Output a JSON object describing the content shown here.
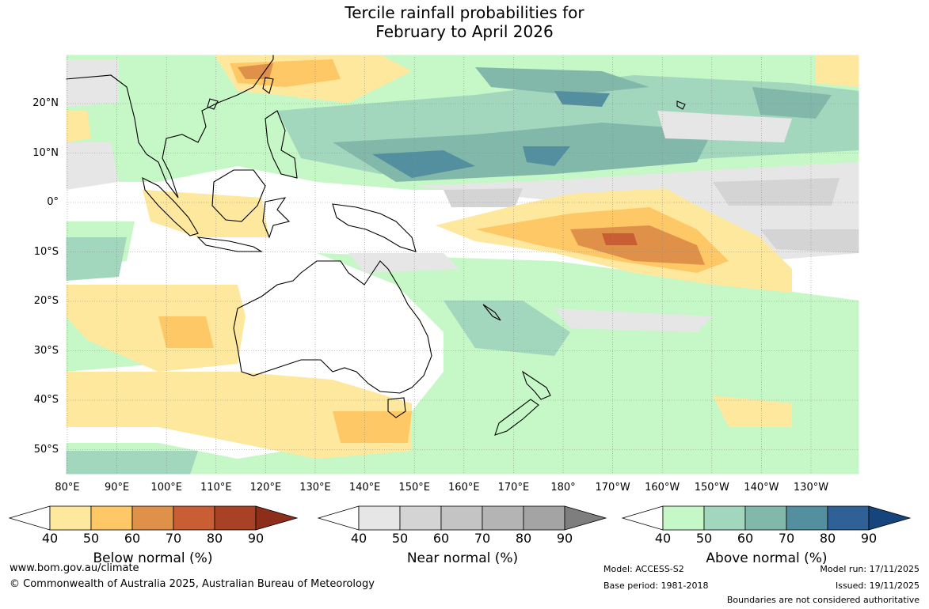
{
  "title_line1": "Tercile rainfall probabilities for",
  "title_line2": "February to April 2026",
  "colors": {
    "below": [
      "#ffffff",
      "#fee89e",
      "#fdc865",
      "#df914a",
      "#c95e35",
      "#a84126",
      "#8c2e1a"
    ],
    "near": [
      "#ffffff",
      "#e6e6e6",
      "#d4d4d4",
      "#c4c4c4",
      "#b4b4b4",
      "#a4a4a4",
      "#7e7e7e"
    ],
    "above": [
      "#ffffff",
      "#c6f7c6",
      "#a3d7bd",
      "#82b8aa",
      "#548fa0",
      "#2f6197",
      "#15457c"
    ],
    "coast": "#000000",
    "grid": "#888888"
  },
  "map": {
    "lat_labels": [
      "20°N",
      "10°N",
      "0°",
      "10°S",
      "20°S",
      "30°S",
      "40°S",
      "50°S"
    ],
    "lon_labels": [
      "80°E",
      "90°E",
      "100°E",
      "110°E",
      "120°E",
      "130°E",
      "140°E",
      "150°E",
      "160°E",
      "170°E",
      "180°",
      "170°W",
      "160°W",
      "150°W",
      "140°W",
      "130°W"
    ]
  },
  "legends": [
    {
      "id": "below",
      "title": "Below normal (%)",
      "ticks": [
        "40",
        "50",
        "60",
        "70",
        "80",
        "90"
      ]
    },
    {
      "id": "near",
      "title": "Near normal (%)",
      "ticks": [
        "40",
        "50",
        "60",
        "70",
        "80",
        "90"
      ]
    },
    {
      "id": "above",
      "title": "Above normal (%)",
      "ticks": [
        "40",
        "50",
        "60",
        "70",
        "80",
        "90"
      ]
    }
  ],
  "footer": {
    "website": "www.bom.gov.au/climate",
    "copyright": "© Commonwealth of Australia 2025, Australian Bureau of Meteorology",
    "model": "Model: ACCESS-S2",
    "base_period": "Base period: 1981-2018",
    "model_run": "Model run: 17/11/2025",
    "issued": "Issued: 19/11/2025",
    "disclaimer": "Boundaries are not considered authoritative"
  }
}
